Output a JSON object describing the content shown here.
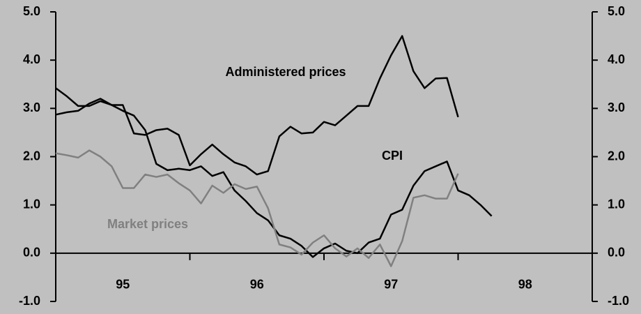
{
  "chart_data": {
    "type": "line",
    "x": [
      95,
      95.083,
      95.167,
      95.25,
      95.333,
      95.417,
      95.5,
      95.583,
      95.667,
      95.75,
      95.833,
      95.917,
      96,
      96.083,
      96.167,
      96.25,
      96.333,
      96.417,
      96.5,
      96.583,
      96.667,
      96.75,
      96.833,
      96.917,
      97,
      97.083,
      97.167,
      97.25,
      97.333,
      97.417,
      97.5,
      97.583,
      97.667,
      97.75,
      97.833,
      97.917,
      98,
      98.083,
      98.167,
      98.25
    ],
    "xlim": [
      95,
      99
    ],
    "xticks": [
      {
        "value": 95.5,
        "label": "95"
      },
      {
        "value": 96.5,
        "label": "96"
      },
      {
        "value": 97.5,
        "label": "97"
      },
      {
        "value": 98.5,
        "label": "98"
      }
    ],
    "ylim": [
      -1,
      5
    ],
    "yticks": [
      {
        "value": -1,
        "label": "-1.0"
      },
      {
        "value": 0,
        "label": "0.0"
      },
      {
        "value": 1,
        "label": "1.0"
      },
      {
        "value": 2,
        "label": "2.0"
      },
      {
        "value": 3,
        "label": "3.0"
      },
      {
        "value": 4,
        "label": "4.0"
      },
      {
        "value": 5,
        "label": "5.0"
      }
    ],
    "y2lim": [
      -1,
      5
    ],
    "y2ticks": [
      {
        "value": -1,
        "label": "-1.0"
      },
      {
        "value": 0,
        "label": "0.0"
      },
      {
        "value": 1,
        "label": "1.0"
      },
      {
        "value": 2,
        "label": "2.0"
      },
      {
        "value": 3,
        "label": "3.0"
      },
      {
        "value": 4,
        "label": "4.0"
      },
      {
        "value": 5,
        "label": "5.0"
      }
    ],
    "series": [
      {
        "name": "Administered prices",
        "color": "#000000",
        "values": [
          2.87,
          2.92,
          2.95,
          3.1,
          3.2,
          3.07,
          3.07,
          2.48,
          2.45,
          2.55,
          2.58,
          2.45,
          1.82,
          2.05,
          2.25,
          2.05,
          1.88,
          1.8,
          1.63,
          1.7,
          2.42,
          2.62,
          2.48,
          2.5,
          2.72,
          2.65,
          2.85,
          3.05,
          3.05,
          3.62,
          4.1,
          4.5,
          3.77,
          3.42,
          3.62,
          3.63,
          2.82,
          null,
          null,
          null
        ]
      },
      {
        "name": "CPI",
        "color": "#000000",
        "values": [
          3.42,
          3.25,
          3.05,
          3.05,
          3.15,
          3.07,
          2.95,
          2.85,
          2.55,
          1.85,
          1.72,
          1.75,
          1.72,
          1.8,
          1.6,
          1.68,
          1.3,
          1.08,
          0.83,
          0.68,
          0.37,
          0.3,
          0.15,
          -0.08,
          0.1,
          0.2,
          0.05,
          0.0,
          0.22,
          0.3,
          0.8,
          0.9,
          1.4,
          1.7,
          1.8,
          1.9,
          1.3,
          1.2,
          1.0,
          0.77
        ]
      },
      {
        "name": "Market prices",
        "color": "#808080",
        "values": [
          2.07,
          2.03,
          1.98,
          2.13,
          2.0,
          1.8,
          1.35,
          1.35,
          1.63,
          1.58,
          1.63,
          1.45,
          1.3,
          1.03,
          1.4,
          1.25,
          1.43,
          1.33,
          1.38,
          0.93,
          0.18,
          0.12,
          -0.03,
          0.22,
          0.37,
          0.1,
          -0.07,
          0.1,
          -0.1,
          0.18,
          -0.27,
          0.25,
          1.15,
          1.2,
          1.13,
          1.13,
          1.65,
          null,
          null,
          null
        ]
      }
    ]
  }
}
